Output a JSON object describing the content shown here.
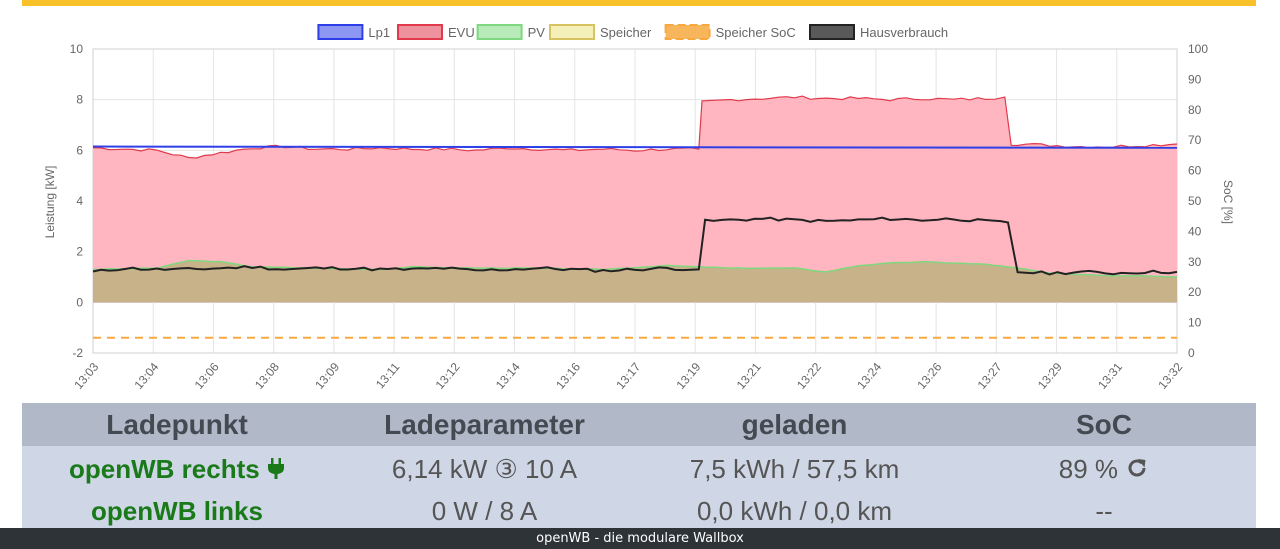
{
  "colors": {
    "top_bar": "#f8c12a",
    "lp1": "#2f3fe8",
    "evu": "#e03a4c",
    "evu_fill": "#ffb6c0",
    "pv": "#7fd87f",
    "pv_fill": "#c8b28a",
    "speicher": "#efe68c",
    "speicher_soc": "#f7a940",
    "hausverbrauch": "#222222",
    "table_header": "#b1b8c8",
    "table_body": "#cfd7e6",
    "lp_name": "#1a7a1a",
    "footer": "#2e3338"
  },
  "chart_data": {
    "type": "line",
    "legend_position": "top-center",
    "grid": true,
    "legend": [
      {
        "key": "lp1",
        "label": "Lp1"
      },
      {
        "key": "evu",
        "label": "EVU"
      },
      {
        "key": "pv",
        "label": "PV"
      },
      {
        "key": "speicher",
        "label": "Speicher"
      },
      {
        "key": "speicher_soc",
        "label": "Speicher SoC"
      },
      {
        "key": "hausverbrauch",
        "label": "Hausverbrauch"
      }
    ],
    "ylabel": "Leistung [kW]",
    "y2label": "SoC [%]",
    "ylim": [
      -2,
      10
    ],
    "y_ticks": [
      "10",
      "8",
      "6",
      "4",
      "2",
      "0",
      "-2"
    ],
    "y2lim": [
      0,
      100
    ],
    "y2_ticks": [
      "100",
      "90",
      "80",
      "70",
      "60",
      "50",
      "40",
      "30",
      "20",
      "10",
      "0"
    ],
    "x_ticks": [
      "13:03",
      "13:04",
      "13:06",
      "13:08",
      "13:09",
      "13:11",
      "13:12",
      "13:14",
      "13:16",
      "13:17",
      "13:19",
      "13:21",
      "13:22",
      "13:24",
      "13:26",
      "13:27",
      "13:29",
      "13:31",
      "13:32"
    ],
    "x_minutes": [
      0,
      29
    ],
    "series": {
      "lp1": [
        [
          0,
          6.15
        ],
        [
          29,
          6.1
        ]
      ],
      "evu": [
        [
          0,
          6.1
        ],
        [
          1,
          6.05
        ],
        [
          2,
          6.0
        ],
        [
          3,
          5.7
        ],
        [
          4,
          5.9
        ],
        [
          5,
          6.1
        ],
        [
          6,
          6.15
        ],
        [
          7,
          6.05
        ],
        [
          8,
          6.05
        ],
        [
          9,
          6.1
        ],
        [
          10,
          6.05
        ],
        [
          11,
          6.05
        ],
        [
          12,
          6.0
        ],
        [
          13,
          6.1
        ],
        [
          14,
          6.05
        ],
        [
          15,
          6.0
        ],
        [
          16,
          6.05
        ],
        [
          17,
          6.0
        ],
        [
          18,
          6.05
        ],
        [
          19,
          6.05
        ],
        [
          19.1,
          7.9
        ],
        [
          20,
          8.0
        ],
        [
          21,
          8.05
        ],
        [
          22,
          8.1
        ],
        [
          23,
          8.05
        ],
        [
          24,
          8.05
        ],
        [
          25,
          8.0
        ],
        [
          26,
          8.05
        ],
        [
          27,
          8.0
        ],
        [
          28,
          8.05
        ],
        [
          28.6,
          8.1
        ],
        [
          29,
          6.25
        ],
        [
          30,
          6.2
        ],
        [
          31,
          6.15
        ],
        [
          32,
          6.15
        ],
        [
          33,
          6.2
        ],
        [
          34,
          6.25
        ]
      ],
      "pv": [
        [
          0,
          1.3
        ],
        [
          2,
          1.35
        ],
        [
          3,
          1.65
        ],
        [
          4,
          1.6
        ],
        [
          5,
          1.4
        ],
        [
          7,
          1.35
        ],
        [
          9,
          1.3
        ],
        [
          10,
          1.4
        ],
        [
          12,
          1.35
        ],
        [
          14,
          1.35
        ],
        [
          16,
          1.3
        ],
        [
          18,
          1.45
        ],
        [
          19,
          1.4
        ],
        [
          20,
          1.35
        ],
        [
          22,
          1.35
        ],
        [
          23,
          1.2
        ],
        [
          24,
          1.45
        ],
        [
          25,
          1.55
        ],
        [
          26,
          1.6
        ],
        [
          27,
          1.55
        ],
        [
          28,
          1.5
        ],
        [
          29,
          1.35
        ],
        [
          30,
          1.15
        ],
        [
          31,
          1.1
        ],
        [
          32,
          1.05
        ],
        [
          33,
          1.05
        ],
        [
          34,
          1.0
        ]
      ],
      "speicher_soc": 5,
      "hausverbrauch": [
        [
          0,
          1.2
        ],
        [
          1,
          1.35
        ],
        [
          2,
          1.3
        ],
        [
          3,
          1.3
        ],
        [
          4,
          1.35
        ],
        [
          5,
          1.4
        ],
        [
          6,
          1.3
        ],
        [
          7,
          1.35
        ],
        [
          8,
          1.35
        ],
        [
          9,
          1.3
        ],
        [
          10,
          1.3
        ],
        [
          11,
          1.35
        ],
        [
          12,
          1.25
        ],
        [
          13,
          1.3
        ],
        [
          14,
          1.35
        ],
        [
          15,
          1.3
        ],
        [
          16,
          1.25
        ],
        [
          17,
          1.3
        ],
        [
          18,
          1.35
        ],
        [
          19,
          1.3
        ],
        [
          19.2,
          3.2
        ],
        [
          20,
          3.25
        ],
        [
          21,
          3.3
        ],
        [
          22,
          3.25
        ],
        [
          23,
          3.2
        ],
        [
          24,
          3.25
        ],
        [
          25,
          3.3
        ],
        [
          26,
          3.25
        ],
        [
          27,
          3.3
        ],
        [
          28,
          3.2
        ],
        [
          28.7,
          3.15
        ],
        [
          29,
          1.2
        ],
        [
          30,
          1.15
        ],
        [
          31,
          1.2
        ],
        [
          32,
          1.15
        ],
        [
          33,
          1.2
        ],
        [
          34,
          1.2
        ]
      ]
    }
  },
  "table": {
    "headers": [
      "Ladepunkt",
      "Ladeparameter",
      "geladen",
      "SoC"
    ],
    "rows": [
      {
        "name": "openWB rechts",
        "name_icon": "plug-icon",
        "params": "6,14 kW ③ 10 A",
        "charged": "7,5 kWh / 57,5 km",
        "soc": "89 %",
        "soc_icon": "refresh-icon"
      },
      {
        "name": "openWB links",
        "params": "0 W / 8 A",
        "charged": "0,0 kWh / 0,0 km",
        "soc": "--"
      }
    ]
  },
  "footer": {
    "text": "openWB - die modulare Wallbox"
  }
}
